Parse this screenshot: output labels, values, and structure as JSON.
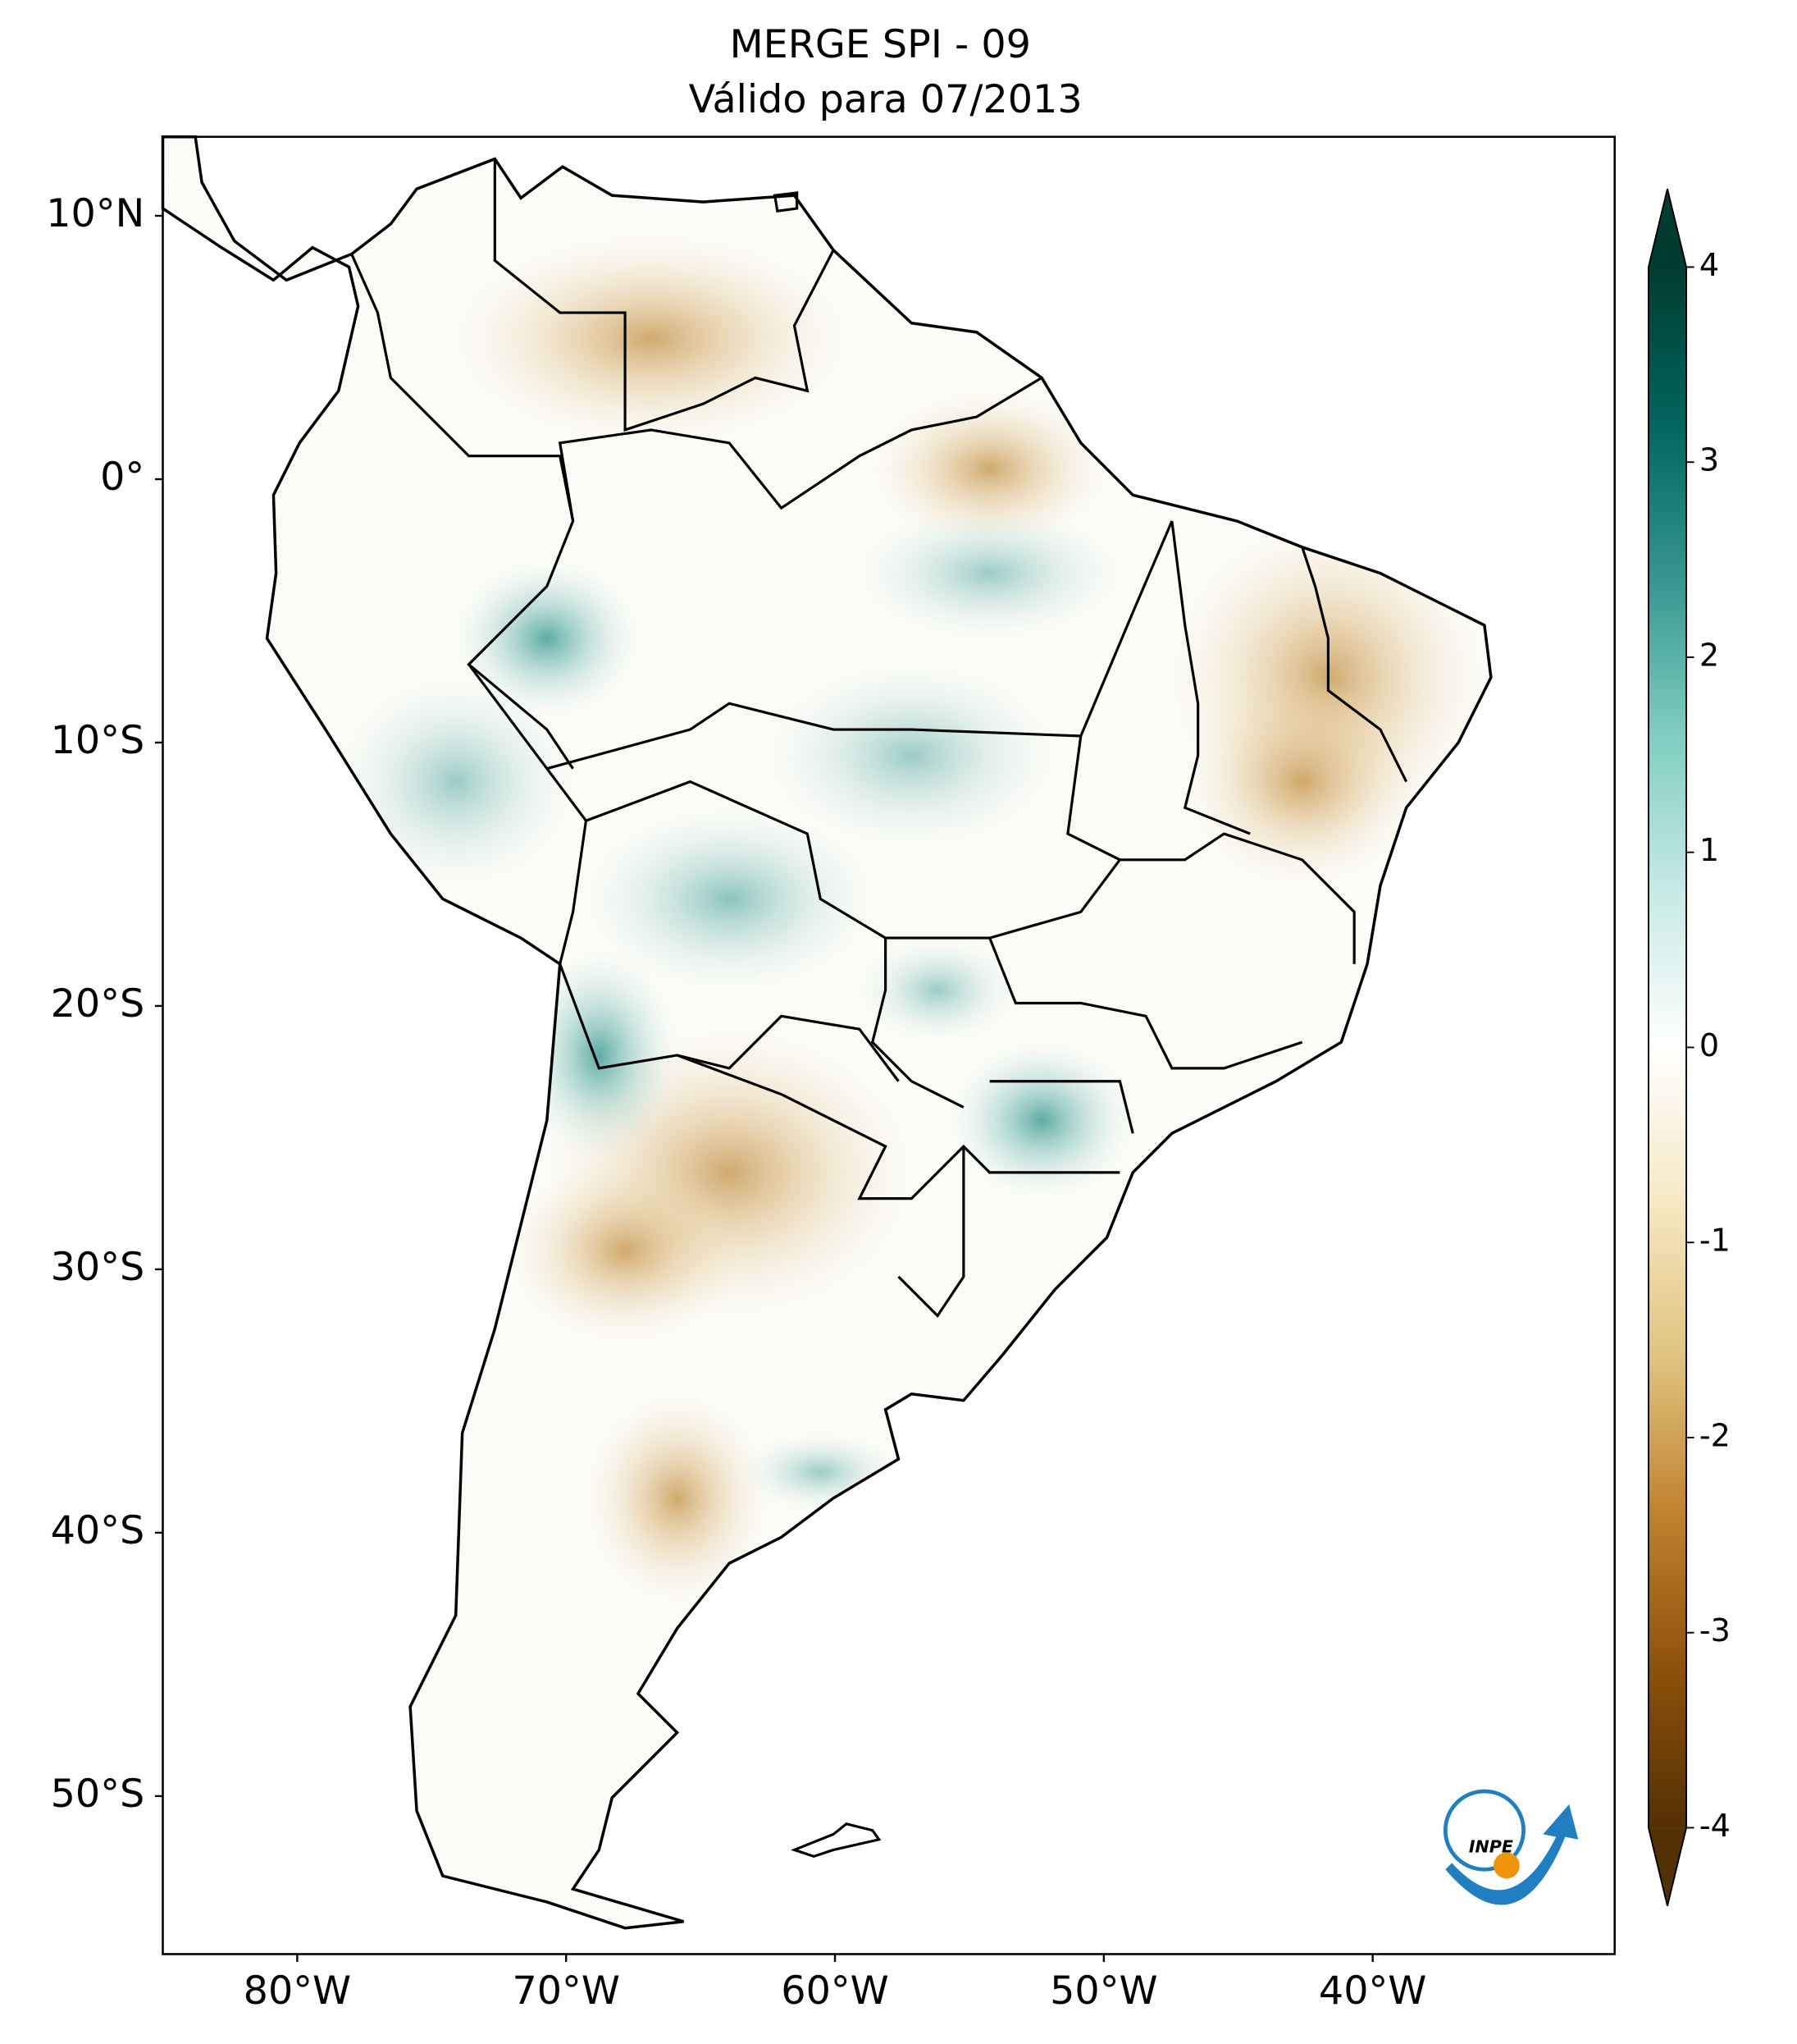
{
  "title": "MERGE   SPI - 09",
  "subtitle": "Válido para 07/2013",
  "map": {
    "xlim": [
      -85,
      -31
    ],
    "ylim": [
      -56,
      13
    ],
    "xticks": [
      {
        "value": -80,
        "label": "80°W"
      },
      {
        "value": -70,
        "label": "70°W"
      },
      {
        "value": -60,
        "label": "60°W"
      },
      {
        "value": -50,
        "label": "50°W"
      },
      {
        "value": -40,
        "label": "40°W"
      }
    ],
    "yticks": [
      {
        "value": 10,
        "label": "10°N"
      },
      {
        "value": 0,
        "label": "0°"
      },
      {
        "value": -10,
        "label": "10°S"
      },
      {
        "value": -20,
        "label": "20°S"
      },
      {
        "value": -30,
        "label": "30°S"
      },
      {
        "value": -40,
        "label": "40°S"
      },
      {
        "value": -50,
        "label": "50°S"
      }
    ]
  },
  "colorbar": {
    "lim": [
      -4,
      4
    ],
    "ticks": [
      -4,
      -3,
      -2,
      -1,
      0,
      1,
      2,
      3,
      4
    ],
    "colors": [
      "#543005",
      "#8c510a",
      "#bf812d",
      "#dfc27d",
      "#f6e8c3",
      "#ffffff",
      "#c7eae5",
      "#80cdc1",
      "#35978f",
      "#01665e",
      "#003c30"
    ]
  },
  "logo": "INPE"
}
